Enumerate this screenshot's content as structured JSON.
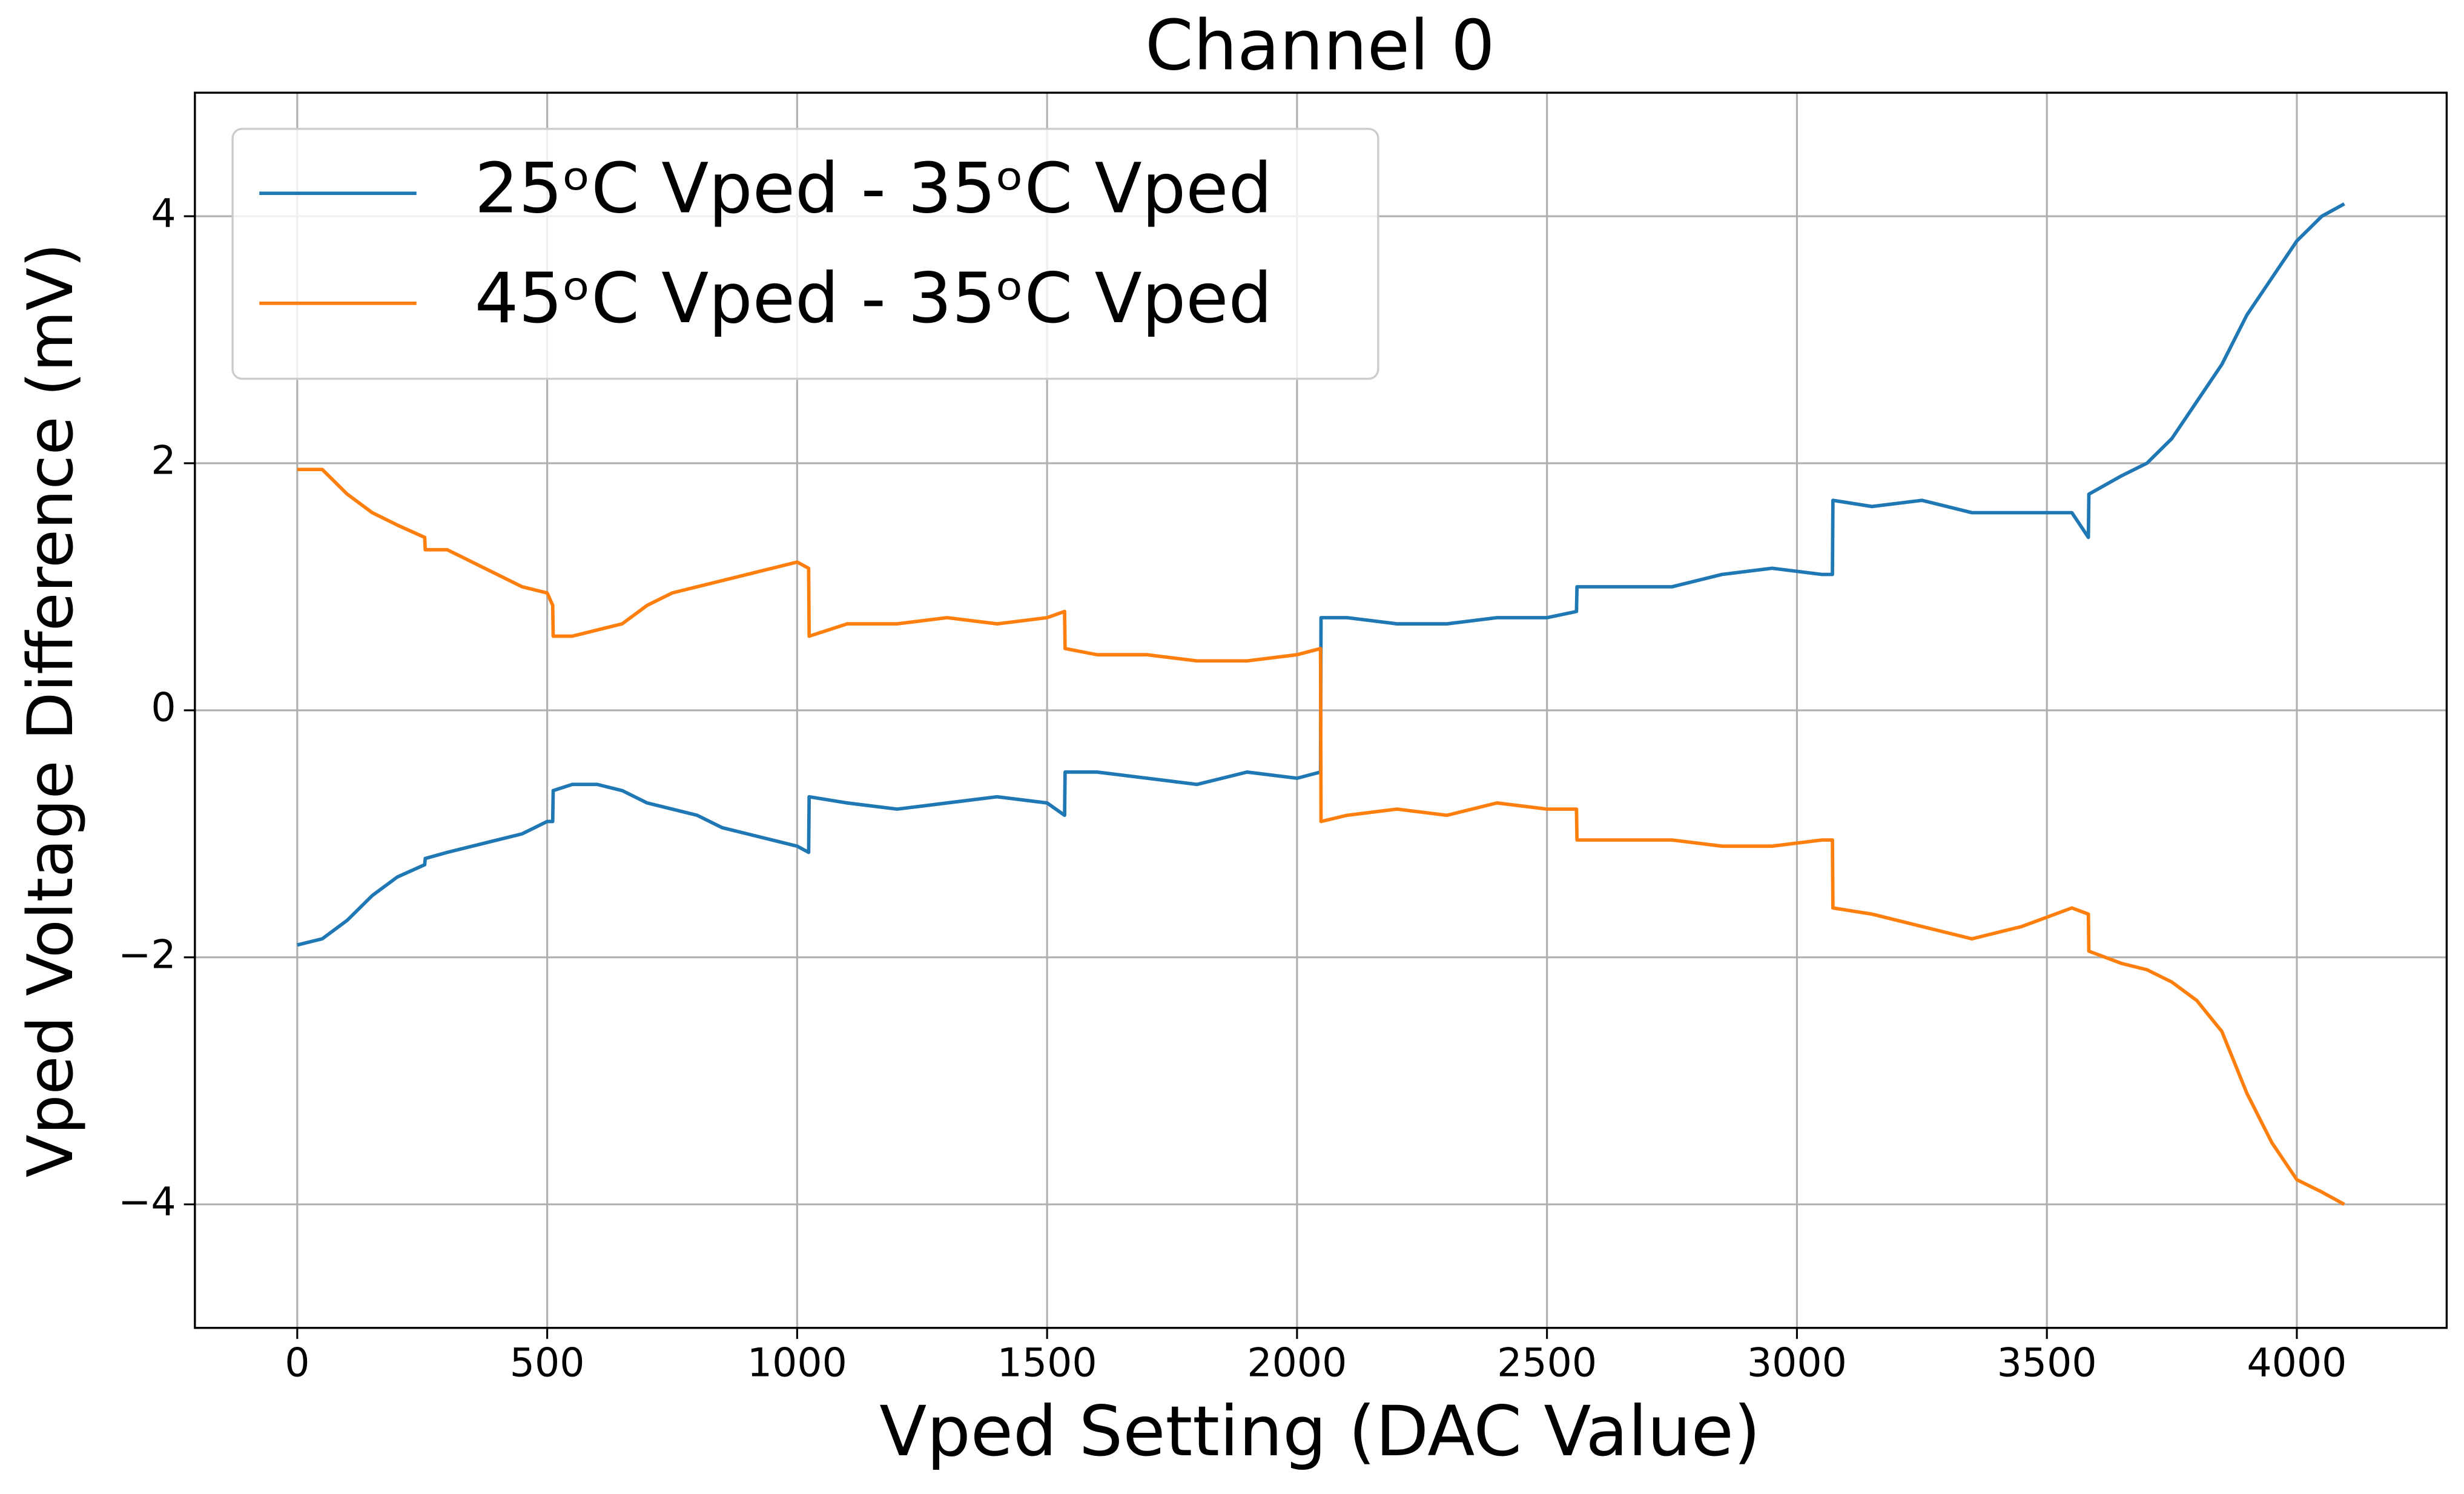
{
  "chart_data": {
    "type": "line",
    "title": "Channel 0",
    "x_label": "Vped Setting (DAC Value)",
    "y_label": "Vped Voltage Difference (mV)",
    "x": [
      0,
      50,
      100,
      150,
      200,
      255,
      256,
      300,
      350,
      400,
      450,
      500,
      511,
      512,
      550,
      600,
      650,
      700,
      750,
      800,
      850,
      900,
      950,
      1000,
      1023,
      1024,
      1100,
      1200,
      1300,
      1400,
      1500,
      1535,
      1536,
      1600,
      1700,
      1800,
      1900,
      2000,
      2047,
      2048,
      2100,
      2200,
      2300,
      2400,
      2500,
      2559,
      2560,
      2650,
      2750,
      2850,
      2950,
      3050,
      3071,
      3072,
      3150,
      3250,
      3350,
      3450,
      3550,
      3583,
      3584,
      3650,
      3700,
      3750,
      3800,
      3850,
      3900,
      3950,
      4000,
      4050,
      4095
    ],
    "series": [
      {
        "name": "25ᵒC Vped - 35ᵒC Vped",
        "color": "#1f77b4",
        "values": [
          -1.9,
          -1.85,
          -1.7,
          -1.5,
          -1.35,
          -1.25,
          -1.2,
          -1.15,
          -1.1,
          -1.05,
          -1.0,
          -0.9,
          -0.9,
          -0.65,
          -0.6,
          -0.6,
          -0.65,
          -0.75,
          -0.8,
          -0.85,
          -0.95,
          -1.0,
          -1.05,
          -1.1,
          -1.15,
          -0.7,
          -0.75,
          -0.8,
          -0.75,
          -0.7,
          -0.75,
          -0.85,
          -0.5,
          -0.5,
          -0.55,
          -0.6,
          -0.5,
          -0.55,
          -0.5,
          0.75,
          0.75,
          0.7,
          0.7,
          0.75,
          0.75,
          0.8,
          1.0,
          1.0,
          1.0,
          1.1,
          1.15,
          1.1,
          1.1,
          1.7,
          1.65,
          1.7,
          1.6,
          1.6,
          1.6,
          1.4,
          1.75,
          1.9,
          2.0,
          2.2,
          2.5,
          2.8,
          3.2,
          3.5,
          3.8,
          4.0,
          4.1
        ]
      },
      {
        "name": "45ᵒC Vped - 35ᵒC Vped",
        "color": "#ff7f0e",
        "values": [
          1.95,
          1.95,
          1.75,
          1.6,
          1.5,
          1.4,
          1.3,
          1.3,
          1.2,
          1.1,
          1.0,
          0.95,
          0.85,
          0.6,
          0.6,
          0.65,
          0.7,
          0.85,
          0.95,
          1.0,
          1.05,
          1.1,
          1.15,
          1.2,
          1.15,
          0.6,
          0.7,
          0.7,
          0.75,
          0.7,
          0.75,
          0.8,
          0.5,
          0.45,
          0.45,
          0.4,
          0.4,
          0.45,
          0.5,
          -0.9,
          -0.85,
          -0.8,
          -0.85,
          -0.75,
          -0.8,
          -0.8,
          -1.05,
          -1.05,
          -1.05,
          -1.1,
          -1.1,
          -1.05,
          -1.05,
          -1.6,
          -1.65,
          -1.75,
          -1.85,
          -1.75,
          -1.6,
          -1.65,
          -1.95,
          -2.05,
          -2.1,
          -2.2,
          -2.35,
          -2.6,
          -3.1,
          -3.5,
          -3.8,
          -3.9,
          -4.0
        ]
      }
    ],
    "xlim": [
      -204.75,
      4299.75
    ],
    "ylim": [
      -5,
      5
    ],
    "xticks": [
      0,
      500,
      1000,
      1500,
      2000,
      2500,
      3000,
      3500,
      4000
    ],
    "yticks": [
      {
        "value": -4,
        "label": "−4"
      },
      {
        "value": -2,
        "label": "−2"
      },
      0,
      2,
      4
    ],
    "grid": true,
    "legend": "upper left"
  }
}
